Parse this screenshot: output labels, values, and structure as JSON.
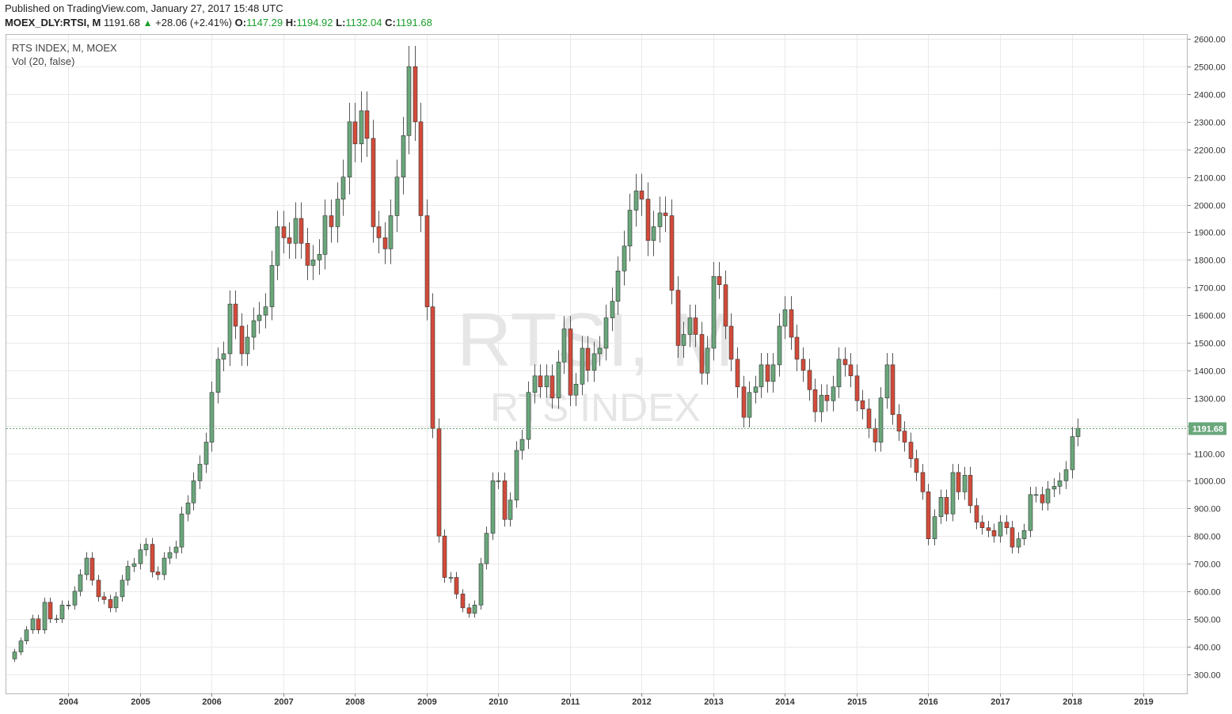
{
  "header": {
    "published": "Published on TradingView.com, January 27, 2017 15:48 UTC",
    "symbol": "MOEX_DLY:RTSI, M",
    "last": "1191.68",
    "change": "+28.06 (+2.41%)",
    "o_label": "O:",
    "o_value": "1147.29",
    "h_label": "H:",
    "h_value": "1194.92",
    "l_label": "L:",
    "l_value": "1132.04",
    "c_label": "C:",
    "c_value": "1191.68"
  },
  "legend": {
    "title": "RTS INDEX, M, MOEX",
    "volume": "Vol (20, false)"
  },
  "watermark": {
    "line1": "RTSI, M",
    "line2": "RTS INDEX"
  },
  "colors": {
    "up": "#6aa77b",
    "down": "#d24b3a",
    "grid": "#e9e9e9",
    "last": "#6aa77b"
  },
  "chart_data": {
    "type": "candlestick",
    "interval": "monthly",
    "ylim": [
      230,
      2615
    ],
    "y_ticks": [
      300,
      400,
      500,
      600,
      700,
      800,
      900,
      1000,
      1100,
      1200,
      1300,
      1400,
      1500,
      1600,
      1700,
      1800,
      1900,
      2000,
      2100,
      2200,
      2300,
      2400,
      2500,
      2600
    ],
    "y_tick_labels": [
      "300.00",
      "400.00",
      "500.00",
      "600.00",
      "700.00",
      "800.00",
      "900.00",
      "1000.00",
      "1100.00",
      "1200.00",
      "1300.00",
      "1400.00",
      "1500.00",
      "1600.00",
      "1700.00",
      "1800.00",
      "1900.00",
      "2000.00",
      "2100.00",
      "2200.00",
      "2300.00",
      "2400.00",
      "2500.00",
      "2600.00"
    ],
    "x_ticks": [
      "2004",
      "2005",
      "2006",
      "2007",
      "2008",
      "2009",
      "2010",
      "2011",
      "2012",
      "2013",
      "2014",
      "2015",
      "2016",
      "2017",
      "2018",
      "2019"
    ],
    "last_value": "1191.68",
    "start_month": "2003-04",
    "closes": [
      380,
      420,
      460,
      500,
      460,
      560,
      500,
      500,
      550,
      550,
      600,
      660,
      720,
      640,
      580,
      570,
      540,
      580,
      640,
      690,
      700,
      750,
      770,
      670,
      660,
      720,
      740,
      760,
      880,
      920,
      1000,
      1060,
      1140,
      1320,
      1440,
      1460,
      1640,
      1560,
      1460,
      1520,
      1580,
      1600,
      1630,
      1780,
      1920,
      1880,
      1860,
      1950,
      1860,
      1780,
      1800,
      1820,
      1960,
      1920,
      2020,
      2100,
      2300,
      2220,
      2340,
      2240,
      1920,
      1880,
      1840,
      1960,
      2100,
      2250,
      2500,
      2300,
      1960,
      1630,
      1190,
      800,
      650,
      650,
      590,
      540,
      520,
      550,
      700,
      810,
      1000,
      1000,
      860,
      930,
      1110,
      1150,
      1320,
      1380,
      1340,
      1380,
      1300,
      1430,
      1550,
      1310,
      1350,
      1480,
      1400,
      1460,
      1480,
      1590,
      1650,
      1760,
      1850,
      1980,
      2050,
      2020,
      1870,
      1920,
      1970,
      1960,
      1690,
      1490,
      1530,
      1590,
      1530,
      1390,
      1480,
      1740,
      1710,
      1560,
      1440,
      1340,
      1230,
      1320,
      1340,
      1420,
      1360,
      1420,
      1560,
      1620,
      1520,
      1440,
      1400,
      1330,
      1250,
      1310,
      1290,
      1340,
      1440,
      1420,
      1380,
      1290,
      1260,
      1190,
      1140,
      1300,
      1420,
      1240,
      1180,
      1140,
      1080,
      1030,
      960,
      790,
      870,
      940,
      880,
      1030,
      960,
      1020,
      910,
      850,
      830,
      820,
      800,
      850,
      830,
      760,
      790,
      820,
      950,
      950,
      920,
      970,
      980,
      1000,
      1040,
      1160,
      1190
    ],
    "volumes": "not shown"
  }
}
